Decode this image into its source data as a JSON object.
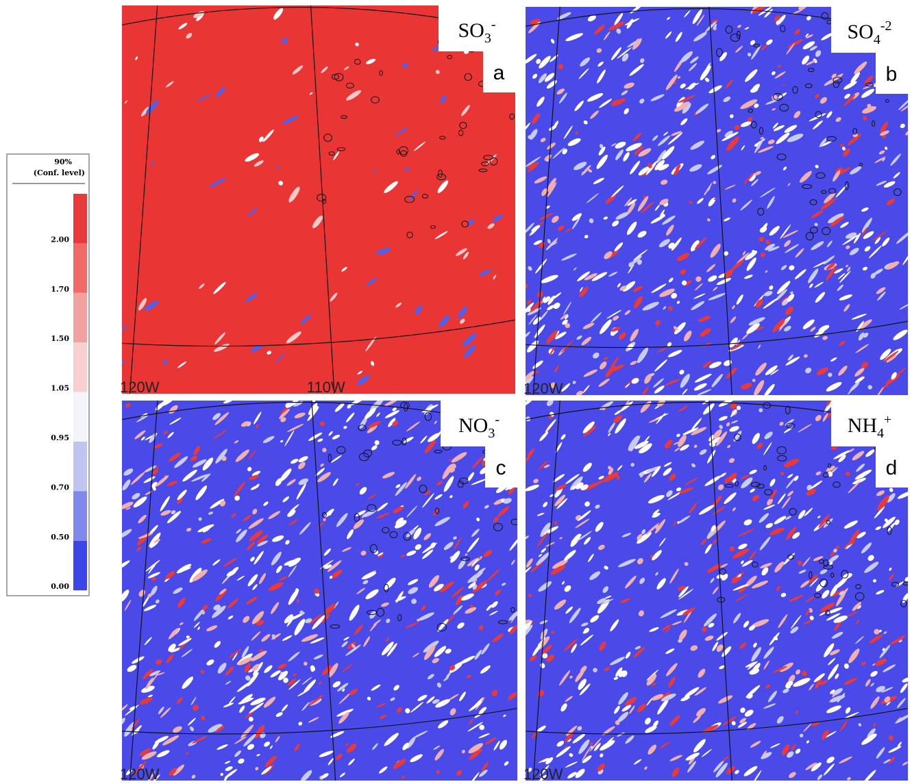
{
  "legend": {
    "title": "90%",
    "subtitle": "(Conf. level)",
    "labels": [
      "2.00",
      "1.70",
      "1.50",
      "1.05",
      "0.95",
      "0.70",
      "0.50",
      "0.00"
    ]
  },
  "panels": [
    {
      "species": {
        "base": "SO",
        "sub": "3",
        "sup": "-"
      },
      "letter": "a",
      "lon_labels": [
        "120W",
        "110W"
      ]
    },
    {
      "species": {
        "base": "SO",
        "sub": "4",
        "sup": "-2"
      },
      "letter": "b",
      "lon_labels": [
        "120W"
      ]
    },
    {
      "species": {
        "base": "NO",
        "sub": "3",
        "sup": "-"
      },
      "letter": "c",
      "lon_labels": [
        "120W"
      ]
    },
    {
      "species": {
        "base": "NH",
        "sub": "4",
        "sup": "+"
      },
      "letter": "d",
      "lon_labels": [
        "120W"
      ]
    }
  ]
}
